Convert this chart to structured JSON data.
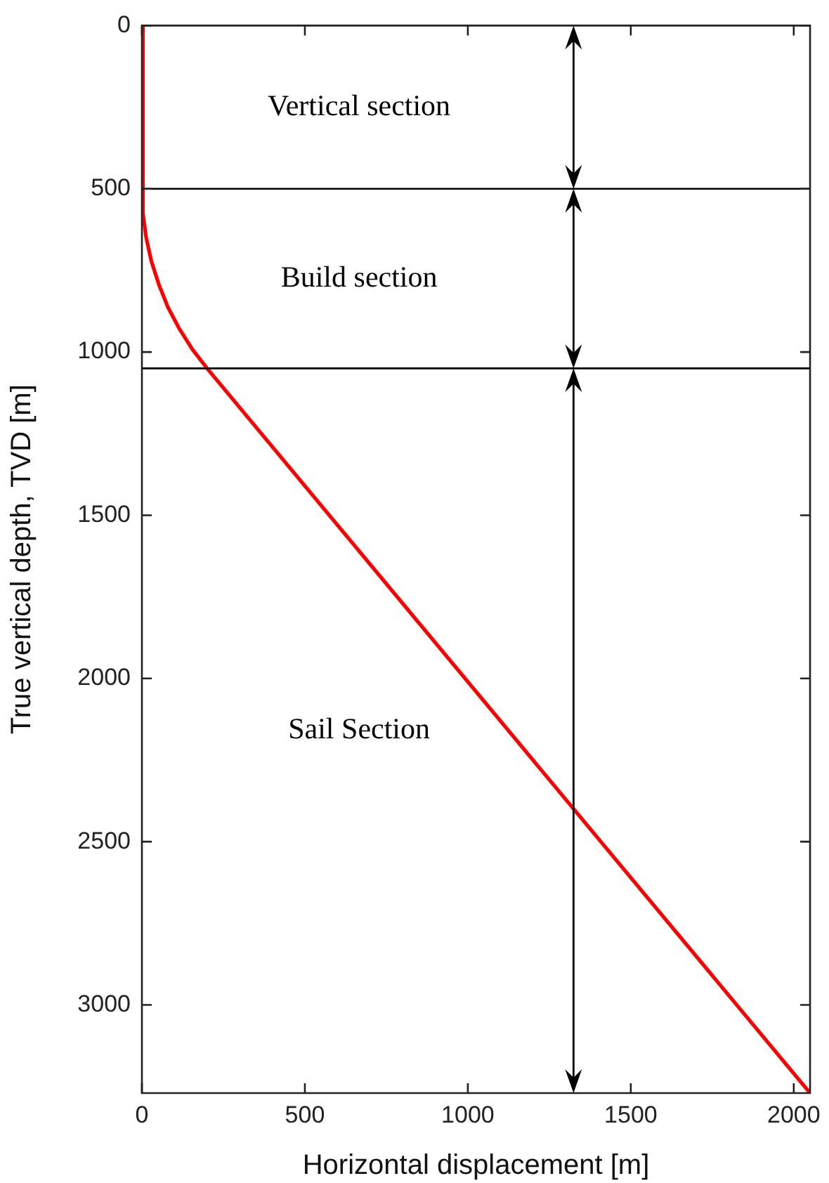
{
  "chart_data": {
    "type": "line",
    "xlabel": "Horizontal displacement [m]",
    "ylabel": "True vertical depth, TVD [m]",
    "series": [
      {
        "color": "#ff0000",
        "x": [
          0,
          3,
          13,
          29,
          52,
          80,
          115,
          155,
          200,
          2050
        ],
        "values": [
          0,
          575,
          649,
          722,
          793,
          863,
          929,
          992,
          1050,
          3270
        ]
      }
    ],
    "xlim": [
      0,
      2050
    ],
    "xticks": [
      0,
      500,
      1000,
      1500,
      2000
    ],
    "ylim": [
      3270,
      0
    ],
    "yticks": [
      0,
      500,
      1000,
      1500,
      2000,
      2500,
      3000
    ],
    "ref_lines": [
      {
        "axis": "y",
        "value": 500,
        "color": "#000000"
      },
      {
        "axis": "y",
        "value": 1050,
        "color": "#000000"
      }
    ],
    "annotations": [
      "Vertical section",
      "Build section",
      "Sail Section"
    ],
    "grid": false,
    "legend": false
  }
}
